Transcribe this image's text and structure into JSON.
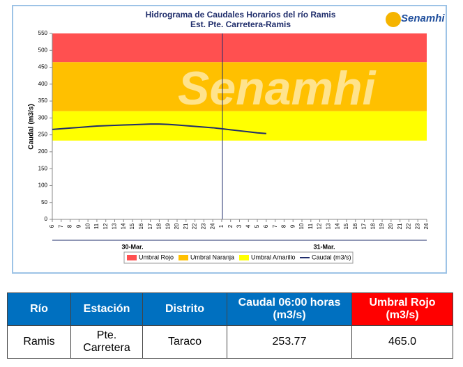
{
  "chart_data": {
    "type": "line",
    "title": "Hidrograma de Caudales Horarios del río Ramis",
    "subtitle": "Est. Pte. Carretera-Ramis",
    "y_label": "Caudal  (m3/s)",
    "logo_text": "Senamhi",
    "watermark": "Senamhi",
    "categories": [
      "6",
      "7",
      "8",
      "9",
      "10",
      "11",
      "12",
      "13",
      "14",
      "15",
      "16",
      "17",
      "18",
      "19",
      "20",
      "21",
      "22",
      "23",
      "24",
      "1",
      "2",
      "3",
      "4",
      "5",
      "6",
      "7",
      "8",
      "9",
      "10",
      "11",
      "12",
      "13",
      "14",
      "15",
      "16",
      "17",
      "18",
      "19",
      "20",
      "21",
      "22",
      "23",
      "24"
    ],
    "date_groups": [
      "30-Mar.",
      "31-Mar."
    ],
    "thresholds": [
      {
        "name": "Umbral Rojo",
        "color": "#ff5050",
        "value": 465
      },
      {
        "name": "Umbral Naranja",
        "color": "#ffc000",
        "value": 320
      },
      {
        "name": "Umbral Amarillo",
        "color": "#ffff00",
        "value": 233
      }
    ],
    "series": [
      {
        "name": "Caudal (m3/s)",
        "color": "#1f2d6b",
        "values": [
          266,
          268,
          270,
          272,
          274,
          276,
          277,
          278,
          279,
          280,
          281,
          282,
          282,
          281,
          279,
          277,
          275,
          273,
          271,
          268,
          265,
          262,
          259,
          256,
          253.77,
          null,
          null,
          null,
          null,
          null,
          null,
          null,
          null,
          null,
          null,
          null,
          null,
          null,
          null,
          null,
          null,
          null,
          null
        ]
      }
    ],
    "ylim": [
      0,
      550
    ],
    "yticks": [
      0,
      50,
      100,
      150,
      200,
      250,
      300,
      350,
      400,
      450,
      500,
      550
    ]
  },
  "table": {
    "header": [
      "Río",
      "Estación",
      "Distrito",
      "Caudal  06:00 horas (m3/s)",
      "Umbral Rojo (m3/s)"
    ],
    "rows": [
      [
        "Ramis",
        "Pte. Carretera",
        "Taraco",
        "253.77",
        "465.0"
      ]
    ]
  }
}
